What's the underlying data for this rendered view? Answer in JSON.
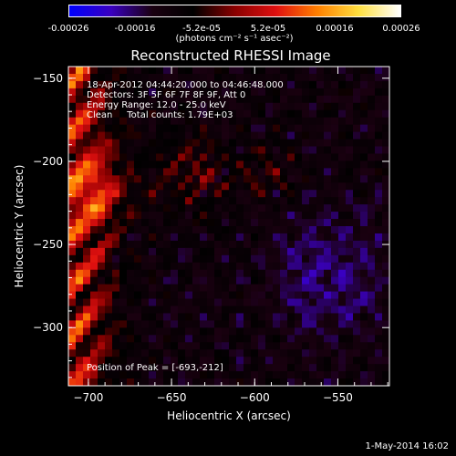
{
  "colorbar": {
    "ticks": [
      "-0.00026",
      "-0.00016",
      "-5.2e-05",
      "5.2e-05",
      "0.00016",
      "0.00026"
    ],
    "units": "(photons cm⁻² s⁻¹ asec⁻²)",
    "range": [
      -0.00026,
      0.00026
    ],
    "colors": [
      "#0000ff",
      "#3a00c0",
      "#1a0010",
      "#000000",
      "#8a0000",
      "#e01010",
      "#ff8000",
      "#ffe040",
      "#ffffff"
    ]
  },
  "chart_data": {
    "type": "heatmap",
    "title": "Reconstructed RHESSI Image",
    "xlabel": "Heliocentric X (arcsec)",
    "ylabel": "Heliocentric Y (arcsec)",
    "xlim": [
      -712,
      -519
    ],
    "ylim": [
      -335,
      -143
    ],
    "xticks": [
      -700,
      -650,
      -600,
      -550
    ],
    "yticks": [
      -150,
      -200,
      -250,
      -300
    ],
    "xtick_labels": [
      "−700",
      "−650",
      "−600",
      "−550"
    ],
    "ytick_labels": [
      "−150",
      "−200",
      "−250",
      "−300"
    ],
    "peak_position": [
      -693,
      -212
    ]
  },
  "annotations": {
    "time_range": "18-Apr-2012 04:44:20.000 to 04:46:48.000",
    "detectors": "Detectors: 3F 5F 6F 7F 8F 9F, Att 0",
    "energy_range": "Energy Range: 12.0 - 25.0 keV",
    "method": "Clean     Total counts: 1.79E+03",
    "peak": "Position of Peak = [-693,-212]"
  },
  "footer": {
    "date": "1-May-2014 16:02"
  }
}
